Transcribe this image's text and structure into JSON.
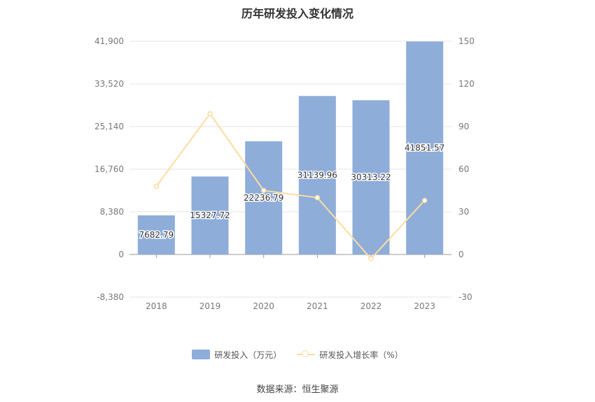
{
  "chart_data": {
    "type": "bar",
    "title": "历年研发投入变化情况",
    "categories": [
      "2018",
      "2019",
      "2020",
      "2021",
      "2022",
      "2023"
    ],
    "series": [
      {
        "name": "研发投入（万元）",
        "type": "bar",
        "axis": "left",
        "values": [
          7682.79,
          15327.72,
          22236.79,
          31139.96,
          30313.22,
          41851.57
        ],
        "labels": [
          "7682.79",
          "15327.72",
          "22236.79",
          "31139.96",
          "30313.22",
          "41851.57"
        ],
        "color": "#8eadd9"
      },
      {
        "name": "研发投入增长率（%）",
        "type": "line",
        "axis": "right",
        "values": [
          48,
          99,
          45,
          40,
          -3,
          38
        ],
        "color": "#fbdca2"
      }
    ],
    "y_left": {
      "ticks": [
        "41,900",
        "33,520",
        "25,140",
        "16,760",
        "8,380",
        "0",
        "-8,380"
      ],
      "range": [
        -8380,
        41900
      ]
    },
    "y_right": {
      "ticks": [
        "150",
        "120",
        "90",
        "60",
        "30",
        "0",
        "-30"
      ],
      "range": [
        -30,
        150
      ]
    },
    "grid": true,
    "legend_position": "bottom"
  },
  "source": "数据来源：恒生聚源"
}
